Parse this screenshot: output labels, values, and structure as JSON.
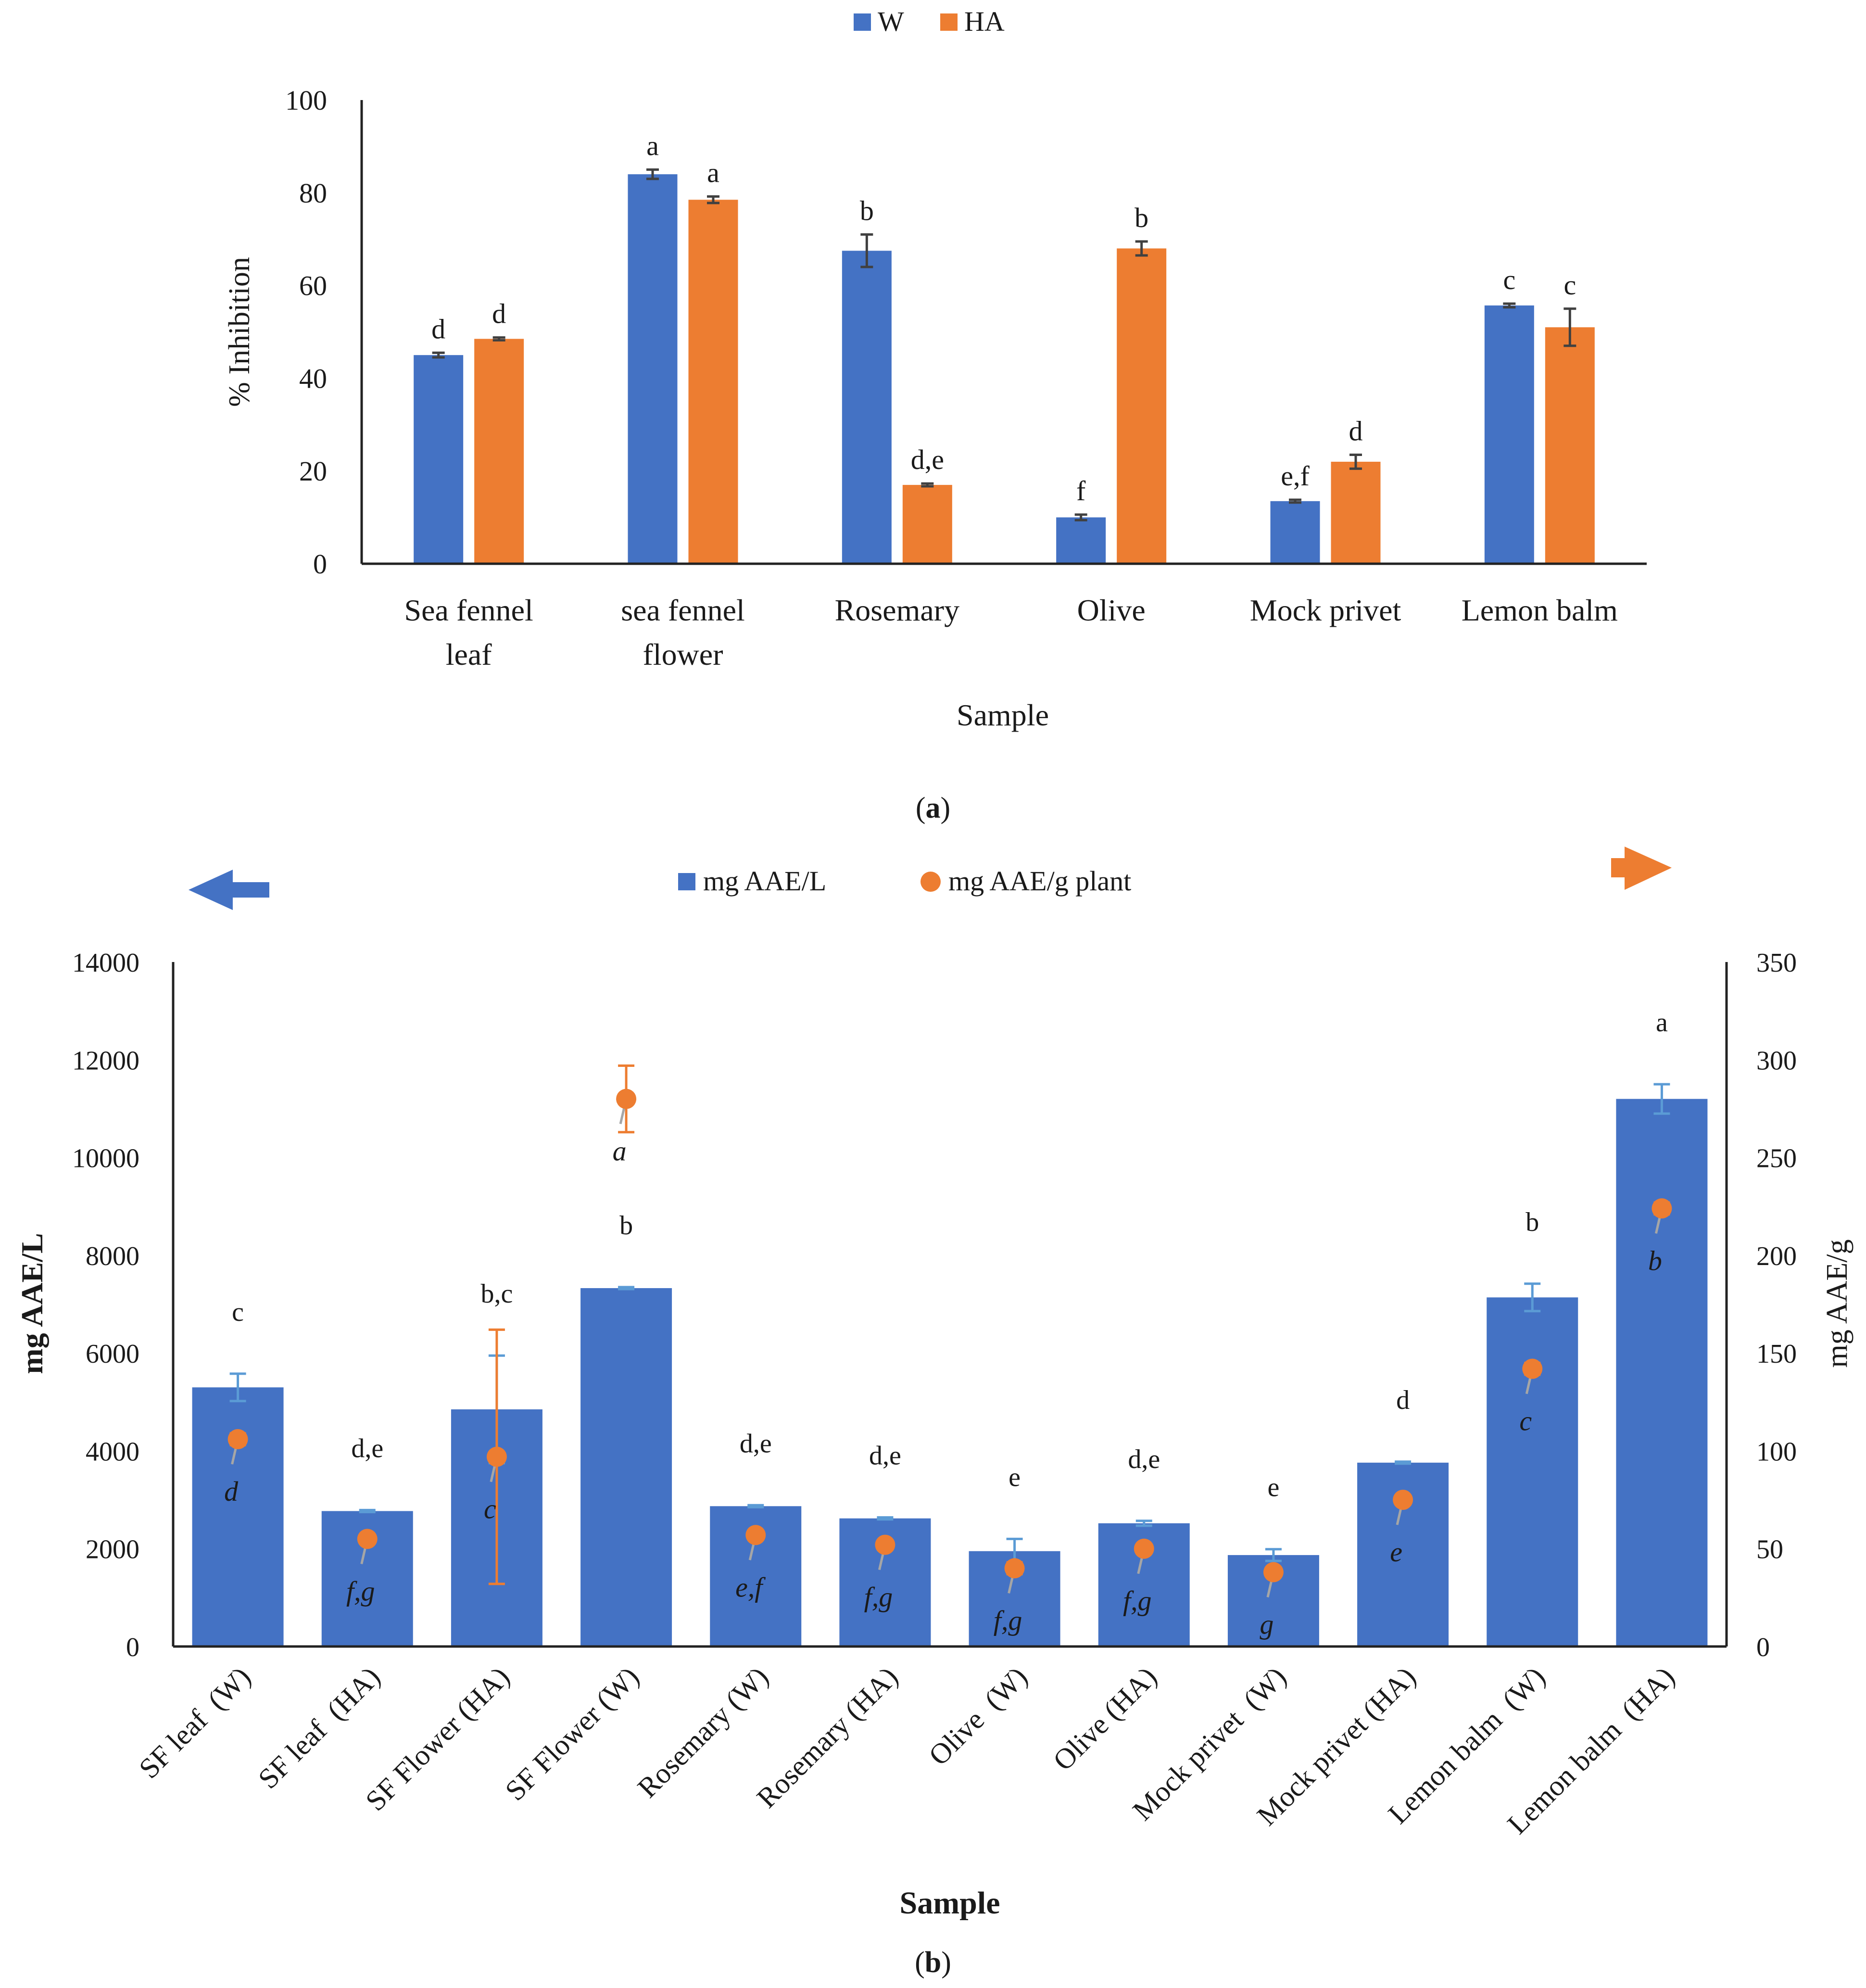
{
  "colors": {
    "blue": "#4472C4",
    "orange": "#ED7D31",
    "axis": "#222222",
    "errdark": "#404040",
    "errblue": "#5B9BD5",
    "leader": "#A6A6A6"
  },
  "chart_data": [
    {
      "type": "bar",
      "panel_label_pre": "(",
      "panel_label": "a",
      "panel_label_post": ")",
      "legend": [
        "W",
        "HA"
      ],
      "ylabel": "% Inhibition",
      "xlabel": "Sample",
      "ylim": [
        0,
        100
      ],
      "yticks": [
        0,
        20,
        40,
        60,
        80,
        100
      ],
      "categories": [
        [
          "Sea fennel",
          "leaf"
        ],
        [
          "sea fennel",
          "flower"
        ],
        [
          "Rosemary"
        ],
        [
          "Olive"
        ],
        [
          "Mock privet"
        ],
        [
          "Lemon balm"
        ]
      ],
      "series": [
        {
          "name": "W",
          "values": [
            45,
            84,
            67.5,
            10,
            13.5,
            55.7
          ],
          "errors": [
            0.5,
            1,
            3.5,
            0.6,
            0.3,
            0.4
          ],
          "letters": [
            "d",
            "a",
            "b",
            "f",
            "e,f",
            "c"
          ]
        },
        {
          "name": "HA",
          "values": [
            48.5,
            78.5,
            17,
            68,
            22,
            51
          ],
          "errors": [
            0.3,
            0.7,
            0.3,
            1.5,
            1.5,
            4
          ],
          "letters": [
            "d",
            "a",
            "d,e",
            "b",
            "d",
            "c"
          ]
        }
      ]
    },
    {
      "type": "bar",
      "panel_label_pre": "(",
      "panel_label": "b",
      "panel_label_post": ")",
      "legend": [
        "mg AAE/L",
        "mg AAE/g plant"
      ],
      "ylabel": "mg AAE/L",
      "y2label": "mg AAE/g",
      "xlabel": "Sample",
      "ylim": [
        0,
        14000
      ],
      "yticks": [
        0,
        2000,
        4000,
        6000,
        8000,
        10000,
        12000,
        14000
      ],
      "y2lim": [
        0,
        350
      ],
      "y2ticks": [
        0,
        50,
        100,
        150,
        200,
        250,
        300,
        350
      ],
      "categories": [
        "SF leaf  (W)",
        "SF leaf  (HA)",
        "SF Flower (HA)",
        "SF Flower (W)",
        "Rosemary (W)",
        "Rosemary (HA)",
        "Olive  (W)",
        "Olive (HA)",
        "Mock privet  (W)",
        "Mock privet (HA)",
        "Lemon balm  (W)",
        "Lemon balm  (HA)"
      ],
      "series": [
        {
          "name": "mg AAE/L",
          "values": [
            5300,
            2770,
            4850,
            7330,
            2870,
            2620,
            1950,
            2520,
            1870,
            3760,
            7140,
            11200
          ],
          "errors": [
            280,
            20,
            1100,
            20,
            20,
            20,
            250,
            50,
            120,
            20,
            280,
            300
          ],
          "letters": [
            "c",
            "d,e",
            "b,c",
            "b",
            "d,e",
            "d,e",
            "e",
            "d,e",
            "e",
            "d",
            "b",
            "a"
          ]
        },
        {
          "name": "mg AAE/g plant",
          "values": [
            106,
            55,
            97,
            280,
            57,
            52,
            40,
            50,
            38,
            75,
            142,
            224
          ],
          "errors": [
            3,
            1,
            65,
            17,
            1,
            1,
            3,
            1,
            1,
            1,
            3,
            3
          ],
          "letters": [
            "d",
            "f,g",
            "c",
            "a",
            "e,f",
            "f,g",
            "f,g",
            "f,g",
            "g",
            "e",
            "c",
            "b"
          ]
        }
      ]
    }
  ]
}
